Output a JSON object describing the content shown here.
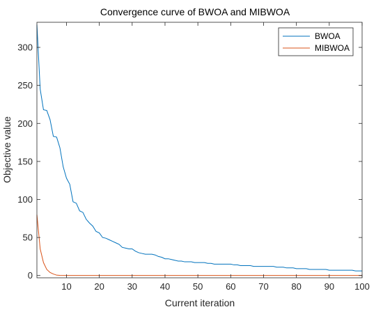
{
  "chart_data": {
    "type": "line",
    "title": "Convergence curve of BWOA and MIBWOA",
    "xlabel": "Current iteration",
    "ylabel": "Objective value",
    "xlim": [
      1,
      100
    ],
    "ylim": [
      -3,
      333
    ],
    "grid": false,
    "legend_position": "top-right",
    "xticks": [
      10,
      20,
      30,
      40,
      50,
      60,
      70,
      80,
      90,
      100
    ],
    "yticks": [
      0,
      50,
      100,
      150,
      200,
      250,
      300
    ],
    "series": [
      {
        "name": "BWOA",
        "color": "#0072BD",
        "points": [
          [
            1,
            330
          ],
          [
            2,
            245
          ],
          [
            3,
            218
          ],
          [
            4,
            217
          ],
          [
            5,
            205
          ],
          [
            6,
            183
          ],
          [
            7,
            182
          ],
          [
            8,
            168
          ],
          [
            9,
            143
          ],
          [
            10,
            128
          ],
          [
            11,
            120
          ],
          [
            12,
            97
          ],
          [
            13,
            95
          ],
          [
            14,
            85
          ],
          [
            15,
            83
          ],
          [
            16,
            74
          ],
          [
            17,
            69
          ],
          [
            18,
            65
          ],
          [
            19,
            58
          ],
          [
            20,
            56
          ],
          [
            21,
            50
          ],
          [
            22,
            49
          ],
          [
            23,
            47
          ],
          [
            24,
            45
          ],
          [
            25,
            43
          ],
          [
            26,
            41
          ],
          [
            27,
            37
          ],
          [
            28,
            36
          ],
          [
            29,
            35
          ],
          [
            30,
            35
          ],
          [
            31,
            32
          ],
          [
            32,
            30
          ],
          [
            33,
            29
          ],
          [
            34,
            28
          ],
          [
            35,
            28
          ],
          [
            36,
            28
          ],
          [
            37,
            27
          ],
          [
            38,
            25
          ],
          [
            39,
            24
          ],
          [
            40,
            22
          ],
          [
            41,
            22
          ],
          [
            42,
            21
          ],
          [
            43,
            20
          ],
          [
            44,
            19
          ],
          [
            45,
            19
          ],
          [
            46,
            18
          ],
          [
            47,
            18
          ],
          [
            48,
            18
          ],
          [
            49,
            17
          ],
          [
            50,
            17
          ],
          [
            51,
            17
          ],
          [
            52,
            17
          ],
          [
            53,
            16
          ],
          [
            54,
            16
          ],
          [
            55,
            15
          ],
          [
            56,
            15
          ],
          [
            57,
            15
          ],
          [
            58,
            15
          ],
          [
            59,
            15
          ],
          [
            60,
            15
          ],
          [
            61,
            14
          ],
          [
            62,
            14
          ],
          [
            63,
            13
          ],
          [
            64,
            13
          ],
          [
            65,
            13
          ],
          [
            66,
            13
          ],
          [
            67,
            12
          ],
          [
            68,
            12
          ],
          [
            69,
            12
          ],
          [
            70,
            12
          ],
          [
            71,
            12
          ],
          [
            72,
            12
          ],
          [
            73,
            12
          ],
          [
            74,
            11
          ],
          [
            75,
            11
          ],
          [
            76,
            11
          ],
          [
            77,
            10
          ],
          [
            78,
            10
          ],
          [
            79,
            10
          ],
          [
            80,
            9
          ],
          [
            81,
            9
          ],
          [
            82,
            9
          ],
          [
            83,
            9
          ],
          [
            84,
            8
          ],
          [
            85,
            8
          ],
          [
            86,
            8
          ],
          [
            87,
            8
          ],
          [
            88,
            8
          ],
          [
            89,
            8
          ],
          [
            90,
            7
          ],
          [
            91,
            7
          ],
          [
            92,
            7
          ],
          [
            93,
            7
          ],
          [
            94,
            7
          ],
          [
            95,
            7
          ],
          [
            96,
            7
          ],
          [
            97,
            7
          ],
          [
            98,
            6
          ],
          [
            99,
            6
          ],
          [
            100,
            6
          ]
        ]
      },
      {
        "name": "MIBWOA",
        "color": "#D95319",
        "points": [
          [
            1,
            80
          ],
          [
            2,
            35
          ],
          [
            3,
            17
          ],
          [
            4,
            8
          ],
          [
            5,
            4
          ],
          [
            6,
            2
          ],
          [
            7,
            0.5
          ],
          [
            8,
            0.2
          ],
          [
            10,
            0.1
          ],
          [
            20,
            0.1
          ],
          [
            30,
            0.1
          ],
          [
            40,
            0.1
          ],
          [
            50,
            0.1
          ],
          [
            60,
            0.1
          ],
          [
            70,
            0.1
          ],
          [
            80,
            0.1
          ],
          [
            90,
            0.1
          ],
          [
            100,
            0.1
          ]
        ]
      }
    ]
  }
}
